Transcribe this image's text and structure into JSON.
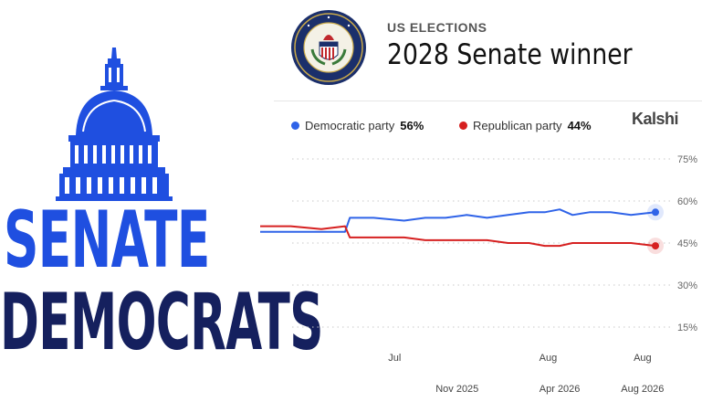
{
  "header": {
    "eyebrow": "US ELECTIONS",
    "title": "2028 Senate winner",
    "brand": "Kalshi",
    "seal_icon": "us-senate-seal-icon"
  },
  "logo": {
    "icon": "capitol-dome-icon",
    "line1": "SENATE",
    "line2": "DEMOCRATS",
    "color_line1": "#1f4fe0",
    "color_line2": "#15205e"
  },
  "chart_data": {
    "type": "line",
    "title": "2028 Senate winner",
    "ylim": [
      0,
      75
    ],
    "yticks": [
      {
        "value": 75,
        "label": "75%"
      },
      {
        "value": 60,
        "label": "60%"
      },
      {
        "value": 45,
        "label": "45%"
      },
      {
        "value": 30,
        "label": "30%"
      },
      {
        "value": 15,
        "label": "15%"
      }
    ],
    "grid": true,
    "legend_position": "top-left",
    "x_range": [
      "2025-01-15",
      "2026-08-20"
    ],
    "x_labels_upper": [
      {
        "date": "2025-08-01",
        "label": "Jul"
      },
      {
        "date": "2026-03-15",
        "label": "Aug"
      },
      {
        "date": "2026-08-01",
        "label": "Aug"
      }
    ],
    "x_labels_lower": [
      {
        "date": "2025-11-01",
        "label": "Nov 2025"
      },
      {
        "date": "2026-04-01",
        "label": "Apr 2026"
      },
      {
        "date": "2026-08-01",
        "label": "Aug 2026"
      }
    ],
    "series": [
      {
        "name": "Democratic party",
        "color": "#2f63e8",
        "current": "56%",
        "points": [
          [
            "2025-01-15",
            49
          ],
          [
            "2025-03-01",
            49
          ],
          [
            "2025-04-15",
            49
          ],
          [
            "2025-05-20",
            49
          ],
          [
            "2025-05-27",
            54
          ],
          [
            "2025-07-01",
            54
          ],
          [
            "2025-08-15",
            53
          ],
          [
            "2025-09-15",
            54
          ],
          [
            "2025-10-15",
            54
          ],
          [
            "2025-11-15",
            55
          ],
          [
            "2025-12-15",
            54
          ],
          [
            "2026-01-15",
            55
          ],
          [
            "2026-02-15",
            56
          ],
          [
            "2026-03-10",
            56
          ],
          [
            "2026-04-01",
            57
          ],
          [
            "2026-04-20",
            55
          ],
          [
            "2026-05-15",
            56
          ],
          [
            "2026-06-15",
            56
          ],
          [
            "2026-07-15",
            55
          ],
          [
            "2026-08-20",
            56
          ]
        ]
      },
      {
        "name": "Republican party",
        "color": "#d62020",
        "current": "44%",
        "points": [
          [
            "2025-01-15",
            51
          ],
          [
            "2025-03-01",
            51
          ],
          [
            "2025-04-15",
            50
          ],
          [
            "2025-05-20",
            51
          ],
          [
            "2025-05-27",
            47
          ],
          [
            "2025-07-01",
            47
          ],
          [
            "2025-08-15",
            47
          ],
          [
            "2025-09-15",
            46
          ],
          [
            "2025-10-15",
            46
          ],
          [
            "2025-11-15",
            46
          ],
          [
            "2025-12-15",
            46
          ],
          [
            "2026-01-15",
            45
          ],
          [
            "2026-02-15",
            45
          ],
          [
            "2026-03-10",
            44
          ],
          [
            "2026-04-01",
            44
          ],
          [
            "2026-04-20",
            45
          ],
          [
            "2026-05-15",
            45
          ],
          [
            "2026-06-15",
            45
          ],
          [
            "2026-07-15",
            45
          ],
          [
            "2026-08-20",
            44
          ]
        ]
      }
    ]
  }
}
